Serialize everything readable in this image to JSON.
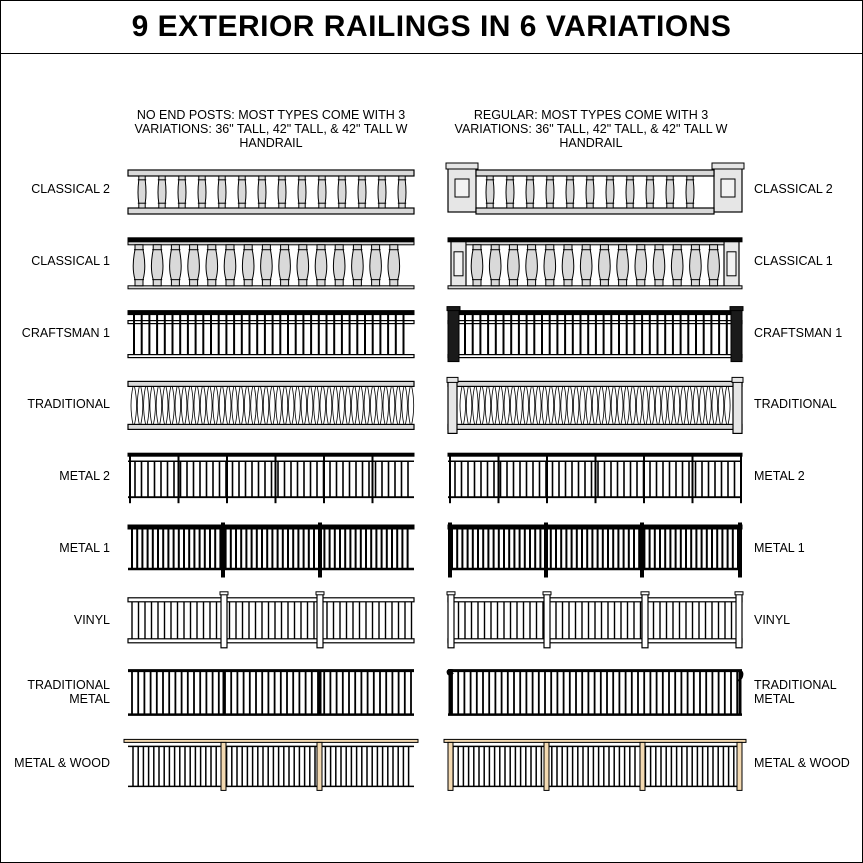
{
  "title": "9 EXTERIOR RAILINGS IN 6 VARIATIONS",
  "left_heading": "NO END POSTS: MOST TYPES COME WITH 3 VARIATIONS: 36\" TALL, 42\" TALL, & 42\" TALL W HANDRAIL",
  "right_heading": "REGULAR: MOST TYPES COME WITH 3 VARIATIONS: 36\" TALL, 42\" TALL, & 42\" TALL W HANDRAIL",
  "railings": [
    {
      "label": "CLASSICAL 2",
      "style": "classical2"
    },
    {
      "label": "CLASSICAL 1",
      "style": "classical1"
    },
    {
      "label": "CRAFTSMAN 1",
      "style": "craftsman"
    },
    {
      "label": "TRADITIONAL",
      "style": "traditional"
    },
    {
      "label": "METAL 2",
      "style": "metal2"
    },
    {
      "label": "METAL 1",
      "style": "metal1"
    },
    {
      "label": "VINYL",
      "style": "vinyl"
    },
    {
      "label": "TRADITIONAL METAL",
      "style": "tradmetal"
    },
    {
      "label": "METAL & WOOD",
      "style": "metalwood"
    }
  ],
  "colors": {
    "line": "#000000",
    "baluster_fill": "#d9d9d9",
    "post_fill": "#e6e6e6",
    "craftsman_post": "#1a1a1a",
    "wood_fill": "#f3d9b1"
  }
}
